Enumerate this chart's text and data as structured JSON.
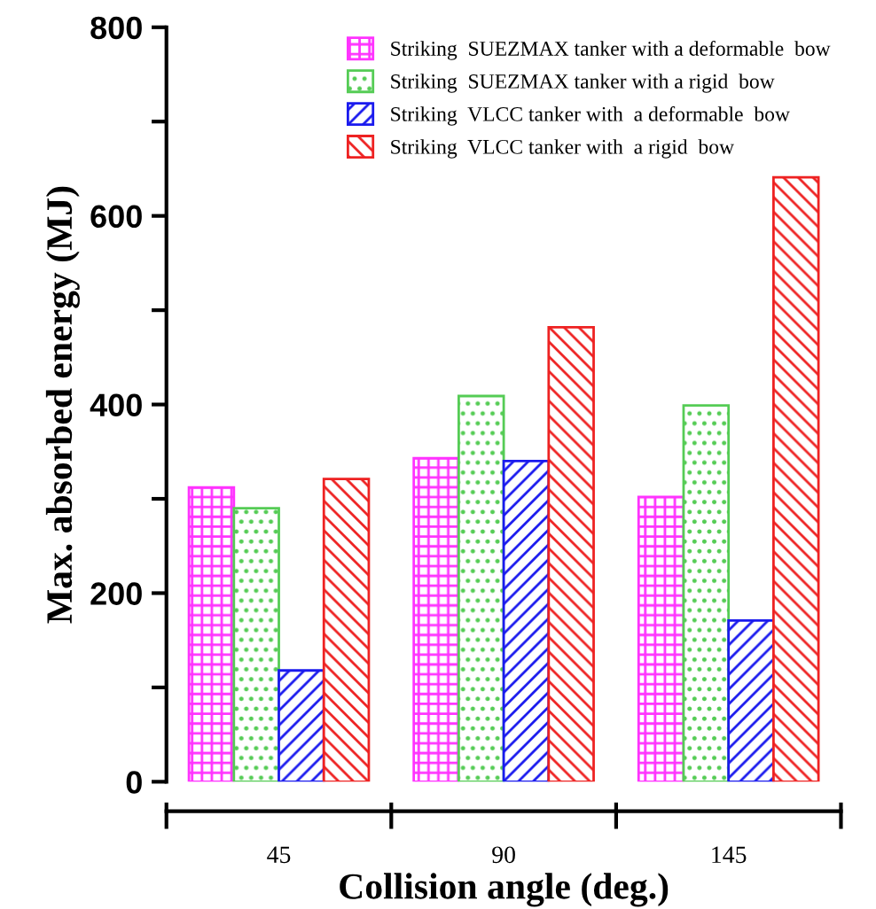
{
  "chart_data": {
    "type": "bar",
    "xlabel": "Collision angle (deg.)",
    "ylabel": "Max. absorbed energy (MJ)",
    "categories": [
      "45",
      "90",
      "145"
    ],
    "series": [
      {
        "name": "Striking  SUEZMAX tanker with a deformable  bow",
        "color": "#ff33ff",
        "values": [
          312,
          343,
          302
        ]
      },
      {
        "name": "Striking  SUEZMAX tanker with a rigid  bow",
        "color": "#55cc55",
        "values": [
          290,
          409,
          399
        ]
      },
      {
        "name": "Striking  VLCC tanker with  a deformable  bow",
        "color": "#1a1aee",
        "values": [
          118,
          340,
          171
        ]
      },
      {
        "name": "Striking  VLCC tanker with  a rigid  bow",
        "color": "#ee2222",
        "values": [
          321,
          482,
          641
        ]
      }
    ],
    "ylim": [
      0,
      800
    ],
    "yticks": [
      0,
      {
        "value": 100,
        "label": null
      },
      200,
      {
        "value": 300,
        "label": null
      },
      400,
      {
        "value": 500,
        "label": null
      },
      600,
      {
        "value": 700,
        "label": null
      },
      800
    ],
    "legend": "top right",
    "grid": false
  }
}
